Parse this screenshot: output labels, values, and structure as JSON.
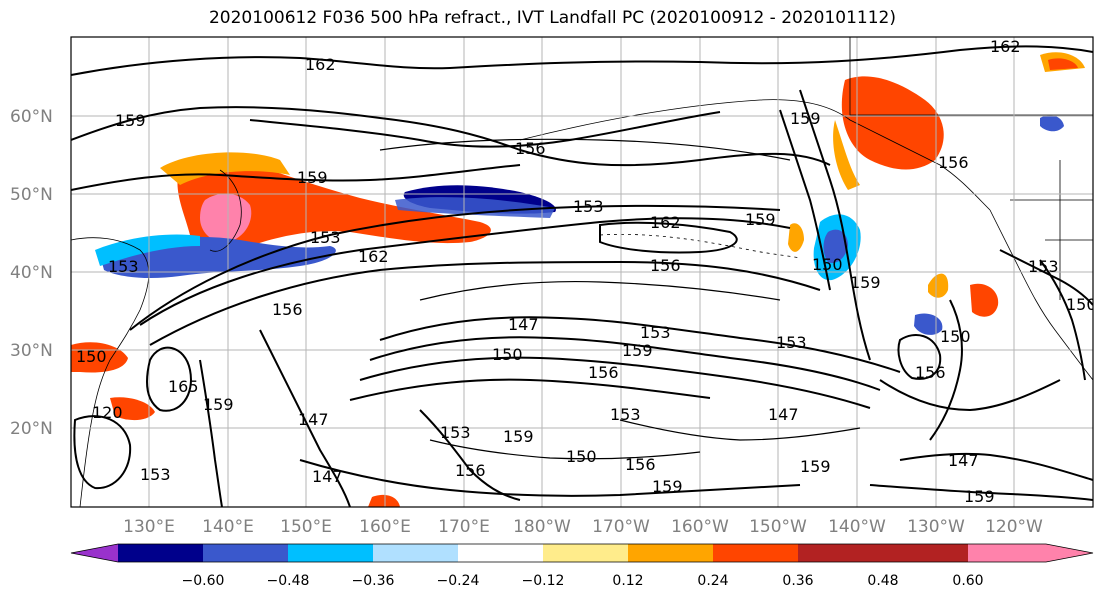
{
  "title": "2020100612 F036 500 hPa refract., IVT Landfall PC (2020100912 - 2020101112)",
  "lat_labels": [
    "60°N",
    "50°N",
    "40°N",
    "30°N",
    "20°N"
  ],
  "lon_labels": [
    "130°E",
    "140°E",
    "150°E",
    "160°E",
    "170°E",
    "180°W",
    "170°W",
    "160°W",
    "150°W",
    "140°W",
    "130°W",
    "120°W"
  ],
  "contour_labels": [
    {
      "text": "162"
    },
    {
      "text": "159"
    },
    {
      "text": "156"
    },
    {
      "text": "159"
    },
    {
      "text": "153"
    },
    {
      "text": "153"
    },
    {
      "text": "162"
    },
    {
      "text": "162"
    },
    {
      "text": "159"
    },
    {
      "text": "156"
    },
    {
      "text": "153"
    },
    {
      "text": "156"
    },
    {
      "text": "147"
    },
    {
      "text": "150"
    },
    {
      "text": "153"
    },
    {
      "text": "156"
    },
    {
      "text": "159"
    },
    {
      "text": "153"
    },
    {
      "text": "150"
    },
    {
      "text": "159"
    },
    {
      "text": "159"
    },
    {
      "text": "156"
    },
    {
      "text": "150"
    },
    {
      "text": "153"
    },
    {
      "text": "150"
    },
    {
      "text": "150"
    },
    {
      "text": "165"
    },
    {
      "text": "159"
    },
    {
      "text": "147"
    },
    {
      "text": "147"
    },
    {
      "text": "153"
    },
    {
      "text": "156"
    },
    {
      "text": "159"
    },
    {
      "text": "150"
    },
    {
      "text": "153"
    },
    {
      "text": "156"
    },
    {
      "text": "159"
    },
    {
      "text": "147"
    },
    {
      "text": "159"
    },
    {
      "text": "147"
    },
    {
      "text": "159"
    },
    {
      "text": "156"
    },
    {
      "text": "162"
    },
    {
      "text": "120"
    },
    {
      "text": "153"
    }
  ],
  "colorbar": {
    "colors": [
      "#9932cc",
      "#00008b",
      "#3a58cc",
      "#00bfff",
      "#b0e0ff",
      "#ffffff",
      "#ffec8b",
      "#ffa500",
      "#ff4500",
      "#b22222",
      "#ff82ab"
    ],
    "tick_labels": [
      "−0.60",
      "−0.48",
      "−0.36",
      "−0.24",
      "−0.12",
      "0.12",
      "0.24",
      "0.36",
      "0.48",
      "0.60"
    ]
  }
}
